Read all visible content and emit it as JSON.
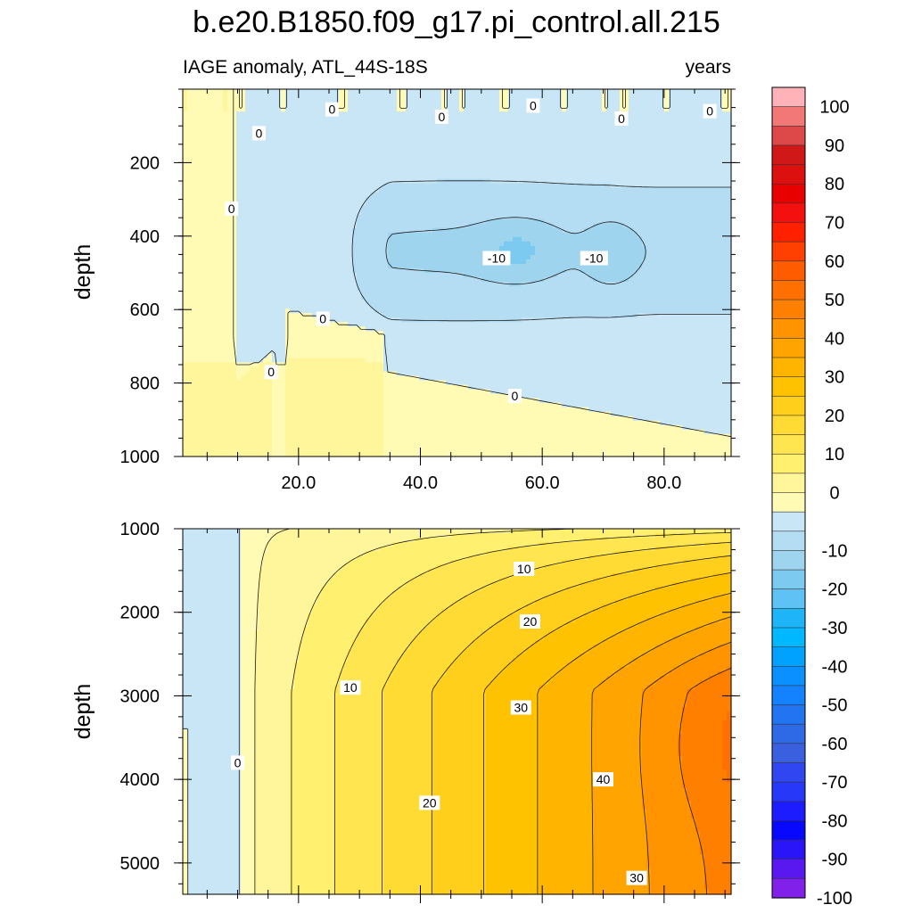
{
  "chart_data": {
    "title": "b.e20.B1850.f09_g17.pi_control.all.215",
    "subtitle_left": "IAGE anomaly, ATL_44S-18S",
    "subtitle_right": "years",
    "type": "heatmap",
    "panels": [
      {
        "name": "upper",
        "ylabel": "depth",
        "xlim": [
          1,
          91
        ],
        "ylim": [
          0,
          1000
        ],
        "y_reversed": true,
        "x_ticks": [
          20,
          40,
          60,
          80
        ],
        "x_tick_labels": [
          "20.0",
          "40.0",
          "60.0",
          "80.0"
        ],
        "y_ticks": [
          200,
          400,
          600,
          800,
          1000
        ],
        "y_tick_labels": [
          "200",
          "400",
          "600",
          "800",
          "1000"
        ],
        "contour_labels": [
          {
            "text": "0",
            "x": 13.5,
            "y": 120
          },
          {
            "text": "0",
            "x": 25.5,
            "y": 55
          },
          {
            "text": "0",
            "x": 43.5,
            "y": 75
          },
          {
            "text": "0",
            "x": 58.5,
            "y": 45
          },
          {
            "text": "0",
            "x": 73,
            "y": 80
          },
          {
            "text": "0",
            "x": 87.5,
            "y": 60
          },
          {
            "text": "0",
            "x": 9,
            "y": 325
          },
          {
            "text": "-10",
            "x": 52.5,
            "y": 460
          },
          {
            "text": "-10",
            "x": 68.5,
            "y": 460
          },
          {
            "text": "0",
            "x": 24,
            "y": 625
          },
          {
            "text": "0",
            "x": 15.5,
            "y": 770
          },
          {
            "text": "0",
            "x": 55.5,
            "y": 835
          }
        ]
      },
      {
        "name": "lower",
        "ylabel": "depth",
        "xlim": [
          1,
          91
        ],
        "ylim": [
          1000,
          5375
        ],
        "y_reversed": true,
        "y_ticks": [
          1000,
          2000,
          3000,
          4000,
          5000
        ],
        "y_tick_labels": [
          "1000",
          "2000",
          "3000",
          "4000",
          "5000"
        ],
        "contour_labels": [
          {
            "text": "0",
            "x": 10,
            "y": 3800
          },
          {
            "text": "10",
            "x": 28.5,
            "y": 2900
          },
          {
            "text": "10",
            "x": 57,
            "y": 1480
          },
          {
            "text": "20",
            "x": 58,
            "y": 2110
          },
          {
            "text": "20",
            "x": 41.5,
            "y": 4280
          },
          {
            "text": "30",
            "x": 56.5,
            "y": 3140
          },
          {
            "text": "30",
            "x": 75.5,
            "y": 5180
          },
          {
            "text": "40",
            "x": 70,
            "y": 4000
          }
        ]
      }
    ],
    "colorbar": {
      "tick_labels": [
        "100",
        "90",
        "80",
        "70",
        "60",
        "50",
        "40",
        "30",
        "20",
        "10",
        "0",
        "-10",
        "-20",
        "-30",
        "-40",
        "-50",
        "-60",
        "-70",
        "-80",
        "-90",
        "-100"
      ],
      "colors_top_to_bottom": [
        "#ffb3b8",
        "#f27878",
        "#dd4848",
        "#d11818",
        "#dd1010",
        "#e80000",
        "#f51010",
        "#ff2000",
        "#ff4000",
        "#ff5c00",
        "#ff7000",
        "#ff8000",
        "#ff9400",
        "#ffa400",
        "#ffb400",
        "#ffc200",
        "#ffcf1c",
        "#ffdb34",
        "#ffe650",
        "#fff070",
        "#fff69c",
        "#fffab4",
        "#c8e6f6",
        "#b4dcf2",
        "#9ed4ee",
        "#7ccaf0",
        "#5ec2f4",
        "#1eb4f8",
        "#00b8ff",
        "#00a2ff",
        "#0a90ff",
        "#1482ff",
        "#2274f0",
        "#2e6ae6",
        "#3a60e0",
        "#3046f0",
        "#2838f8",
        "#1c1cff",
        "#0808ff",
        "#2a14f8",
        "#5a18f0",
        "#8020e8"
      ]
    }
  }
}
